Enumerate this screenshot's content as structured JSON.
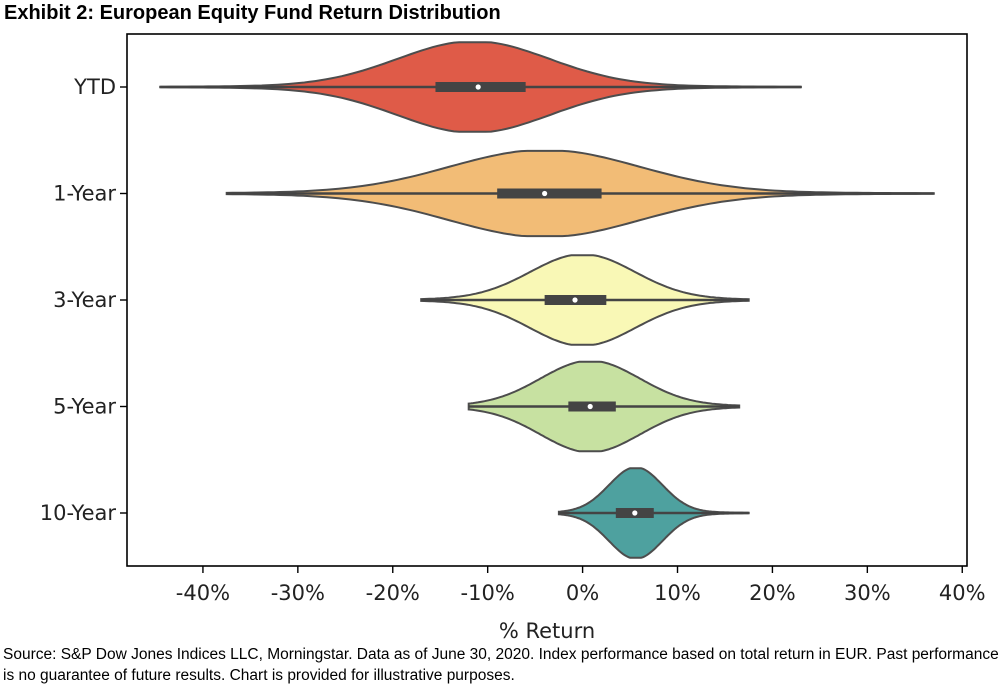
{
  "title": "Exhibit 2: European Equity Fund Return Distribution",
  "source": "Source: S&P Dow Jones Indices LLC, Morningstar. Data as of June 30, 2020. Index performance based on total return in EUR. Past performance is no guarantee of future results. Chart is provided for illustrative purposes.",
  "chart_data": {
    "type": "violin",
    "orientation": "horizontal",
    "xlabel": "% Return",
    "ylabel": "",
    "xlim": [
      -48,
      40.5
    ],
    "xticks": [
      -40,
      -30,
      -20,
      -10,
      0,
      10,
      20,
      30,
      40
    ],
    "xtick_labels": [
      "-40%",
      "-30%",
      "-20%",
      "-10%",
      "0%",
      "10%",
      "20%",
      "30%",
      "40%"
    ],
    "grid": false,
    "categories": [
      "YTD",
      "1-Year",
      "3-Year",
      "5-Year",
      "10-Year"
    ],
    "series": [
      {
        "category": "YTD",
        "color": "#df5b48",
        "min": -44.5,
        "q1": -15.5,
        "median": -11,
        "q3": -6,
        "max": 23,
        "mode": -11.5,
        "spread": 8,
        "max_half_width": 0.42
      },
      {
        "category": "1-Year",
        "color": "#f2bc76",
        "min": -37.5,
        "q1": -9,
        "median": -4,
        "q3": 2,
        "max": 37,
        "mode": -4,
        "spread": 10,
        "max_half_width": 0.4
      },
      {
        "category": "3-Year",
        "color": "#f9f8b6",
        "min": -17,
        "q1": -4,
        "median": -0.8,
        "q3": 2.5,
        "max": 17.5,
        "mode": 0,
        "spread": 5.5,
        "max_half_width": 0.42
      },
      {
        "category": "5-Year",
        "color": "#c7e1a1",
        "min": -12,
        "q1": -1.5,
        "median": 0.8,
        "q3": 3.5,
        "max": 16.5,
        "mode": 0.8,
        "spread": 5.2,
        "max_half_width": 0.42
      },
      {
        "category": "10-Year",
        "color": "#4ea19f",
        "min": -2.5,
        "q1": 3.5,
        "median": 5.5,
        "q3": 7.5,
        "max": 17.5,
        "mode": 5.6,
        "spread": 2.8,
        "max_half_width": 0.42
      }
    ]
  }
}
